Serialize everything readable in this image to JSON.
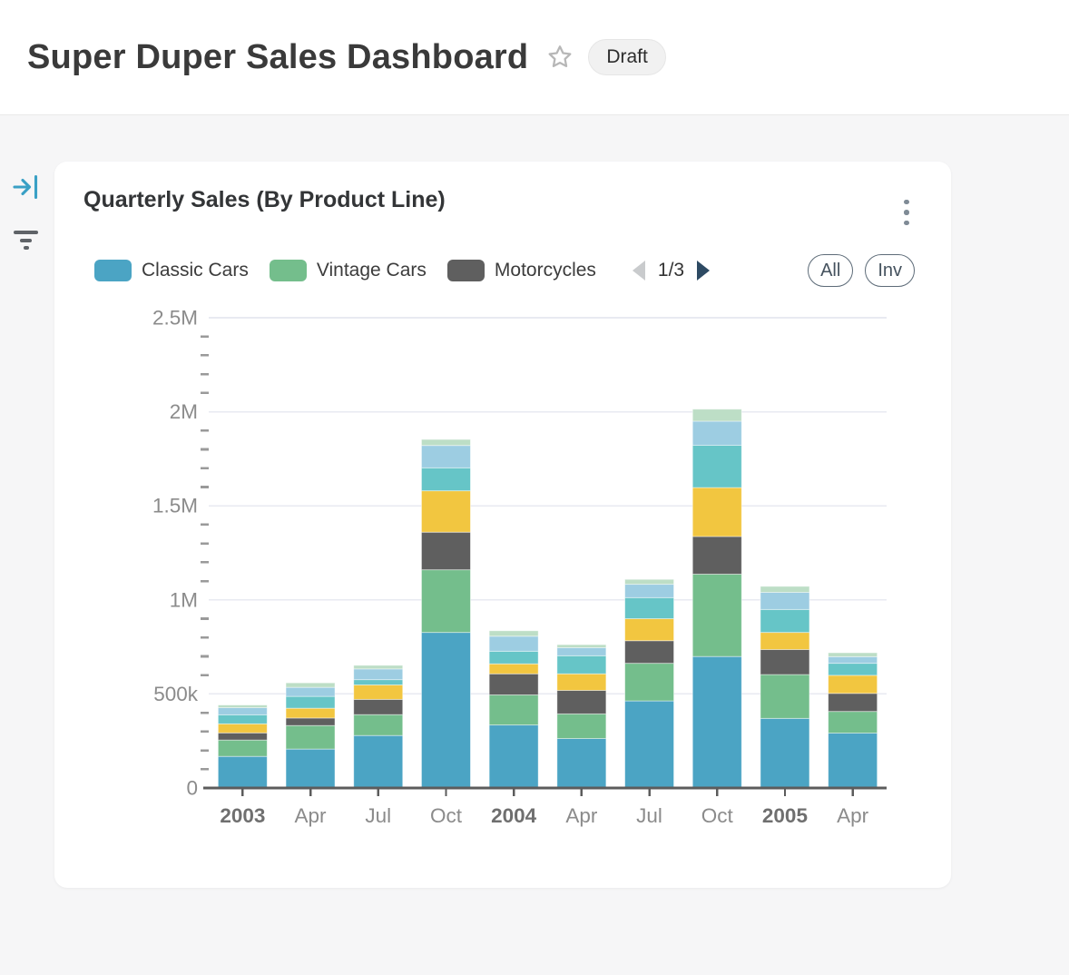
{
  "header": {
    "title": "Super Duper Sales Dashboard",
    "star_icon": "star-outline",
    "status_badge": "Draft"
  },
  "sidebar": {
    "collapse_icon": "arrow-to-line",
    "filter_icon": "filter-lines"
  },
  "card": {
    "title": "Quarterly Sales (By Product Line)",
    "menu_icon": "kebab-vertical",
    "legend": {
      "items": [
        {
          "label": "Classic Cars",
          "color": "#4BA4C4"
        },
        {
          "label": "Vintage Cars",
          "color": "#74BE8C"
        },
        {
          "label": "Motorcycles",
          "color": "#5F5F5F"
        }
      ],
      "pagination": {
        "current": 1,
        "total": 3,
        "text": "1/3",
        "prev_enabled": false,
        "next_enabled": true
      },
      "buttons": [
        {
          "label": "All"
        },
        {
          "label": "Inv"
        }
      ]
    }
  },
  "colors": {
    "page_bg": "#f6f6f7",
    "card_bg": "#ffffff",
    "accent_blue": "#3AA0C5",
    "grid_line": "#e8eaf1",
    "axis_line": "#5c5c5c",
    "tick_label": "#8b8b8b",
    "year_label": "#6f6f6f",
    "pagination_prev": "#c9cbcd",
    "pagination_next": "#2d4a63"
  },
  "chart_data": {
    "type": "bar",
    "stacked": true,
    "title": "Quarterly Sales (By Product Line)",
    "categories": [
      {
        "label": "2003",
        "bold": true
      },
      {
        "label": "Apr",
        "bold": false
      },
      {
        "label": "Jul",
        "bold": false
      },
      {
        "label": "Oct",
        "bold": false
      },
      {
        "label": "2004",
        "bold": true
      },
      {
        "label": "Apr",
        "bold": false
      },
      {
        "label": "Jul",
        "bold": false
      },
      {
        "label": "Oct",
        "bold": false
      },
      {
        "label": "2005",
        "bold": true
      },
      {
        "label": "Apr",
        "bold": false
      }
    ],
    "series": [
      {
        "name": "Classic Cars",
        "color": "#4BA4C4",
        "values": [
          168000,
          207000,
          279000,
          827000,
          335000,
          263000,
          463000,
          699000,
          370000,
          292000
        ]
      },
      {
        "name": "Vintage Cars",
        "color": "#74BE8C",
        "values": [
          87000,
          125000,
          111000,
          333000,
          160000,
          131000,
          200000,
          438000,
          233000,
          115000
        ]
      },
      {
        "name": "Motorcycles",
        "color": "#5F5F5F",
        "values": [
          38000,
          40000,
          81000,
          200000,
          112000,
          125000,
          120000,
          200000,
          133000,
          96000
        ]
      },
      {
        "name": "Unlabeled (yellow, legend page 2)",
        "color": "#F2C640",
        "values": [
          48000,
          52000,
          77000,
          220000,
          53000,
          88000,
          117000,
          260000,
          91000,
          96000
        ]
      },
      {
        "name": "Unlabeled (teal, legend page 2)",
        "color": "#66C5C7",
        "values": [
          48000,
          63000,
          28000,
          122000,
          67000,
          96000,
          112000,
          225000,
          122000,
          64000
        ]
      },
      {
        "name": "Unlabeled (light blue, legend page 2)",
        "color": "#9DCDE2",
        "values": [
          38000,
          48000,
          57000,
          119000,
          80000,
          43000,
          71000,
          128000,
          91000,
          35000
        ]
      },
      {
        "name": "Unlabeled (pale green, legend page 3)",
        "color": "#BDDEC6",
        "values": [
          14000,
          24000,
          19000,
          32000,
          29000,
          16000,
          26000,
          64000,
          32000,
          21000
        ]
      }
    ],
    "ylim": [
      0,
      2500000
    ],
    "y_ticks": [
      {
        "value": 0,
        "label": "0"
      },
      {
        "value": 500000,
        "label": "500k"
      },
      {
        "value": 1000000,
        "label": "1M"
      },
      {
        "value": 1500000,
        "label": "1.5M"
      },
      {
        "value": 2000000,
        "label": "2M"
      },
      {
        "value": 2500000,
        "label": "2.5M"
      }
    ],
    "minor_ticks_per_interval": 4,
    "grid": "horizontal-major",
    "legend_position": "top",
    "legend_note": "Legend paginated 1/3; only first 3 of 7 stacked series are labeled on screen"
  }
}
